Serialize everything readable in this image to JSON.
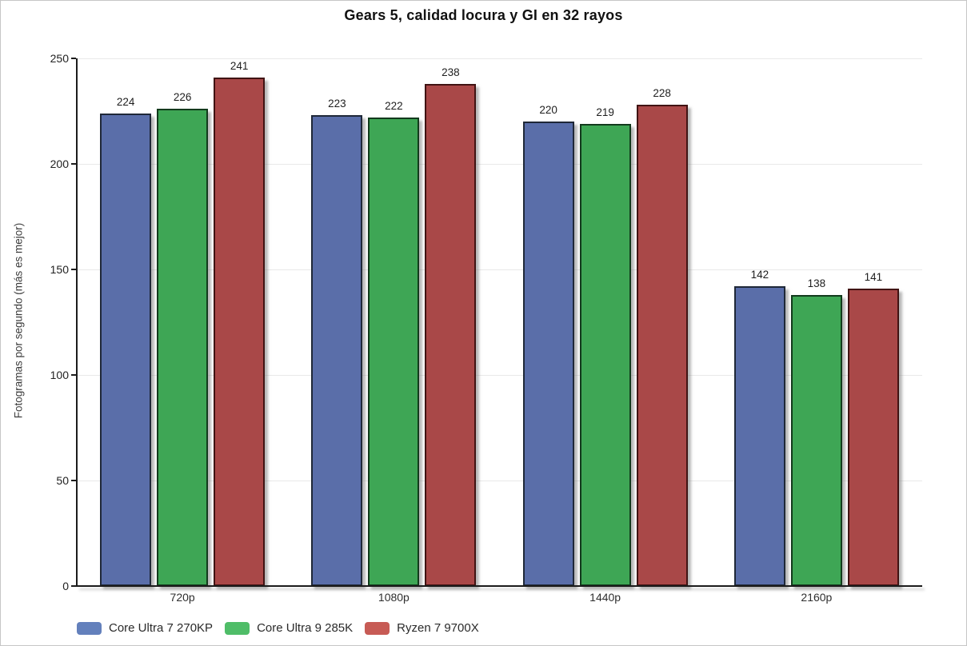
{
  "chart_data": {
    "type": "bar",
    "title": "Gears 5, calidad locura y GI en 32 rayos",
    "xlabel": "",
    "ylabel": "Fotogramas por segundo (más es mejor)",
    "categories": [
      "720p",
      "1080p",
      "1440p",
      "2160p"
    ],
    "series": [
      {
        "name": "Core Ultra 7 270KP",
        "values": [
          224,
          223,
          220,
          142
        ],
        "bar_color": "#5a6ea9",
        "bar_border_color": "#1f2838",
        "legend_color": "#6380bc"
      },
      {
        "name": "Core Ultra 9 285K",
        "values": [
          226,
          222,
          219,
          138
        ],
        "bar_color": "#3ea655",
        "bar_border_color": "#123a1c",
        "legend_color": "#4fbd68"
      },
      {
        "name": "Ryzen 7 9700X",
        "values": [
          241,
          238,
          228,
          141
        ],
        "bar_color": "#a94848",
        "bar_border_color": "#401313",
        "legend_color": "#c75b55"
      }
    ],
    "ylim": [
      0,
      250
    ],
    "yticks": [
      0,
      50,
      100,
      150,
      200,
      250
    ],
    "grid": true,
    "legend_position": "bottom-left",
    "colors": {
      "gridline": "#e9e9e9",
      "axis": "#1c1c1c",
      "background": "#ffffff"
    }
  }
}
